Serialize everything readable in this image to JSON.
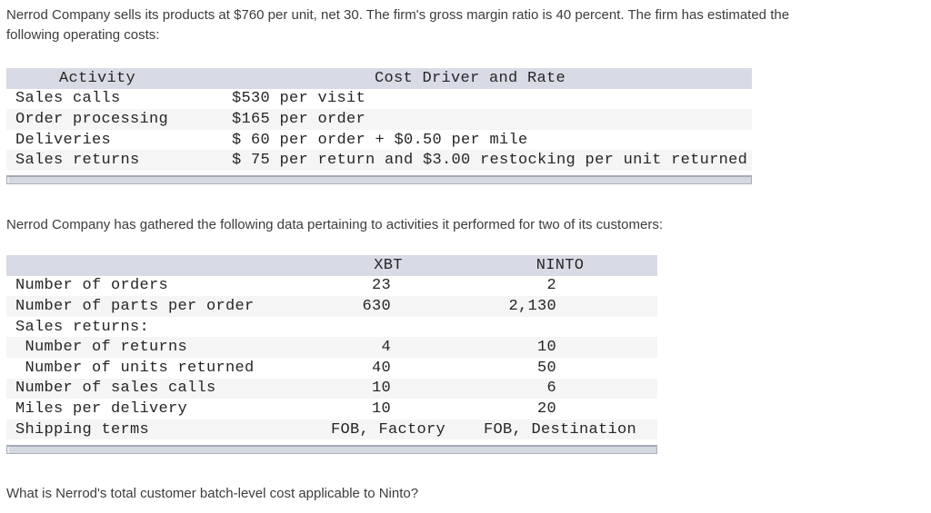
{
  "page": {
    "intro_line1": "Nerrod Company sells its products at $760 per unit, net 30. The firm's gross margin ratio is 40 percent. The firm has estimated the",
    "intro_line2": "following operating costs:",
    "para2": "Nerrod Company has gathered the following data pertaining to activities it performed for two of its customers:",
    "question": "What is Nerrod's total customer batch-level cost applicable to Ninto?"
  },
  "cost_table": {
    "headers": {
      "activity": "Activity",
      "cost_driver": "Cost Driver and Rate"
    },
    "rows": [
      {
        "activity": "Sales calls",
        "rate": "$530 per visit"
      },
      {
        "activity": "Order processing",
        "rate": "$165 per order"
      },
      {
        "activity": "Deliveries",
        "rate": "$ 60 per order + $0.50 per mile"
      },
      {
        "activity": "Sales returns",
        "rate": "$ 75 per return and $3.00 restocking per unit returned"
      }
    ]
  },
  "customer_table": {
    "headers": {
      "label": "",
      "xbt": "XBT",
      "ninto": "NINTO"
    },
    "rows": [
      {
        "label": "Number of orders",
        "xbt": "23",
        "ninto": "2",
        "type": "num"
      },
      {
        "label": "Number of parts per order",
        "xbt": "630",
        "ninto": "2,130",
        "type": "num"
      },
      {
        "label": "Sales returns:",
        "xbt": "",
        "ninto": "",
        "type": "num"
      },
      {
        "label": " Number of returns",
        "xbt": "4",
        "ninto": "10",
        "type": "num"
      },
      {
        "label": " Number of units returned",
        "xbt": "40",
        "ninto": "50",
        "type": "num"
      },
      {
        "label": "Number of sales calls",
        "xbt": "10",
        "ninto": "6",
        "type": "num"
      },
      {
        "label": "Miles per delivery",
        "xbt": "10",
        "ninto": "20",
        "type": "num"
      },
      {
        "label": "Shipping terms",
        "xbt": "FOB, Factory",
        "ninto": "FOB, Destination",
        "type": "text"
      }
    ]
  },
  "colors": {
    "table_header_bg": "#d8dbe5",
    "alt_row_bg": "#f5f5f5",
    "scrollbar_fill": "#d4d8e1",
    "scrollbar_border": "#a5aab4",
    "body_text": "#3c3c3c",
    "table_text": "#262626"
  }
}
